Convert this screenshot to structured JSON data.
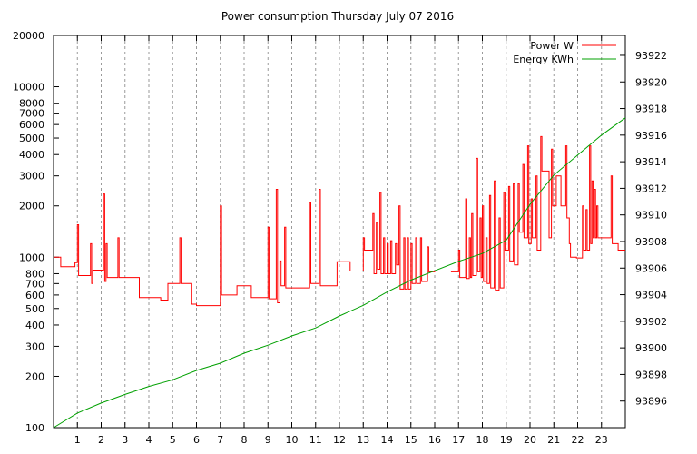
{
  "chart_data": {
    "type": "line",
    "title": "Power consumption Thursday July 07 2016",
    "x_ticks": [
      "1",
      "2",
      "3",
      "4",
      "5",
      "6",
      "7",
      "8",
      "9",
      "10",
      "11",
      "12",
      "13",
      "14",
      "15",
      "16",
      "17",
      "18",
      "19",
      "20",
      "21",
      "22",
      "23"
    ],
    "xlim": [
      0,
      24
    ],
    "y_left": {
      "scale": "log",
      "range": [
        100,
        20000
      ],
      "ticks": [
        100,
        200,
        300,
        400,
        500,
        600,
        700,
        800,
        1000,
        2000,
        3000,
        4000,
        5000,
        6000,
        7000,
        8000,
        10000,
        20000
      ]
    },
    "y_right": {
      "scale": "linear",
      "range": [
        93894.0,
        93923.5
      ],
      "ticks": [
        93896,
        93898,
        93900,
        93902,
        93904,
        93906,
        93908,
        93910,
        93912,
        93914,
        93916,
        93918,
        93920,
        93922
      ]
    },
    "grid": "vertical dashed at hours",
    "legend_position": "top-right",
    "series": [
      {
        "name": "Power W",
        "axis": "left",
        "color": "#ff0000",
        "points": [
          [
            0.0,
            1000
          ],
          [
            0.3,
            1000
          ],
          [
            0.3,
            880
          ],
          [
            0.9,
            880
          ],
          [
            0.9,
            930
          ],
          [
            1.0,
            930
          ],
          [
            1.0,
            1550
          ],
          [
            1.05,
            1550
          ],
          [
            1.05,
            780
          ],
          [
            1.55,
            780
          ],
          [
            1.55,
            1200
          ],
          [
            1.6,
            1200
          ],
          [
            1.6,
            700
          ],
          [
            1.65,
            700
          ],
          [
            1.65,
            840
          ],
          [
            2.1,
            840
          ],
          [
            2.1,
            2350
          ],
          [
            2.15,
            2350
          ],
          [
            2.15,
            720
          ],
          [
            2.2,
            720
          ],
          [
            2.2,
            1200
          ],
          [
            2.25,
            1200
          ],
          [
            2.25,
            760
          ],
          [
            2.7,
            760
          ],
          [
            2.7,
            1300
          ],
          [
            2.75,
            1300
          ],
          [
            2.75,
            760
          ],
          [
            3.6,
            760
          ],
          [
            3.6,
            580
          ],
          [
            4.5,
            580
          ],
          [
            4.5,
            560
          ],
          [
            4.8,
            560
          ],
          [
            4.8,
            700
          ],
          [
            5.3,
            700
          ],
          [
            5.3,
            1300
          ],
          [
            5.35,
            1300
          ],
          [
            5.35,
            700
          ],
          [
            5.8,
            700
          ],
          [
            5.8,
            530
          ],
          [
            6.0,
            530
          ],
          [
            6.0,
            520
          ],
          [
            7.0,
            520
          ],
          [
            7.0,
            2000
          ],
          [
            7.05,
            2000
          ],
          [
            7.05,
            600
          ],
          [
            7.7,
            600
          ],
          [
            7.7,
            680
          ],
          [
            8.3,
            680
          ],
          [
            8.3,
            580
          ],
          [
            9.0,
            580
          ],
          [
            9.0,
            1500
          ],
          [
            9.05,
            1500
          ],
          [
            9.05,
            570
          ],
          [
            9.35,
            570
          ],
          [
            9.35,
            2500
          ],
          [
            9.4,
            2500
          ],
          [
            9.4,
            540
          ],
          [
            9.5,
            540
          ],
          [
            9.5,
            950
          ],
          [
            9.55,
            950
          ],
          [
            9.55,
            680
          ],
          [
            9.7,
            680
          ],
          [
            9.7,
            1500
          ],
          [
            9.75,
            1500
          ],
          [
            9.75,
            660
          ],
          [
            10.75,
            660
          ],
          [
            10.75,
            2100
          ],
          [
            10.8,
            2100
          ],
          [
            10.8,
            700
          ],
          [
            11.15,
            700
          ],
          [
            11.15,
            2500
          ],
          [
            11.2,
            2500
          ],
          [
            11.2,
            680
          ],
          [
            11.9,
            680
          ],
          [
            11.9,
            940
          ],
          [
            12.45,
            940
          ],
          [
            12.45,
            830
          ],
          [
            13.0,
            830
          ],
          [
            13.0,
            1300
          ],
          [
            13.05,
            1300
          ],
          [
            13.05,
            1100
          ],
          [
            13.4,
            1100
          ],
          [
            13.4,
            1800
          ],
          [
            13.45,
            1800
          ],
          [
            13.45,
            800
          ],
          [
            13.55,
            800
          ],
          [
            13.55,
            1600
          ],
          [
            13.6,
            1600
          ],
          [
            13.6,
            850
          ],
          [
            13.7,
            850
          ],
          [
            13.7,
            2400
          ],
          [
            13.75,
            2400
          ],
          [
            13.75,
            800
          ],
          [
            13.85,
            800
          ],
          [
            13.85,
            1300
          ],
          [
            13.9,
            1300
          ],
          [
            13.9,
            800
          ],
          [
            14.0,
            800
          ],
          [
            14.0,
            1200
          ],
          [
            14.05,
            1200
          ],
          [
            14.05,
            800
          ],
          [
            14.15,
            800
          ],
          [
            14.15,
            1250
          ],
          [
            14.2,
            1250
          ],
          [
            14.2,
            800
          ],
          [
            14.35,
            800
          ],
          [
            14.35,
            1200
          ],
          [
            14.4,
            1200
          ],
          [
            14.4,
            900
          ],
          [
            14.5,
            900
          ],
          [
            14.5,
            2000
          ],
          [
            14.55,
            2000
          ],
          [
            14.55,
            650
          ],
          [
            14.7,
            650
          ],
          [
            14.7,
            1300
          ],
          [
            14.75,
            1300
          ],
          [
            14.75,
            650
          ],
          [
            14.85,
            650
          ],
          [
            14.85,
            1300
          ],
          [
            14.9,
            1300
          ],
          [
            14.9,
            650
          ],
          [
            15.0,
            650
          ],
          [
            15.0,
            1200
          ],
          [
            15.05,
            1200
          ],
          [
            15.05,
            700
          ],
          [
            15.2,
            700
          ],
          [
            15.2,
            1300
          ],
          [
            15.25,
            1300
          ],
          [
            15.25,
            700
          ],
          [
            15.4,
            700
          ],
          [
            15.4,
            1300
          ],
          [
            15.45,
            1300
          ],
          [
            15.45,
            720
          ],
          [
            15.7,
            720
          ],
          [
            15.7,
            1150
          ],
          [
            15.75,
            1150
          ],
          [
            15.75,
            820
          ],
          [
            16.0,
            820
          ],
          [
            16.0,
            830
          ],
          [
            16.7,
            830
          ],
          [
            16.7,
            820
          ],
          [
            17.0,
            820
          ],
          [
            17.0,
            1100
          ],
          [
            17.05,
            1100
          ],
          [
            17.05,
            760
          ],
          [
            17.3,
            760
          ],
          [
            17.3,
            2200
          ],
          [
            17.35,
            2200
          ],
          [
            17.35,
            750
          ],
          [
            17.45,
            750
          ],
          [
            17.45,
            1300
          ],
          [
            17.5,
            1300
          ],
          [
            17.5,
            760
          ],
          [
            17.55,
            760
          ],
          [
            17.55,
            1800
          ],
          [
            17.6,
            1800
          ],
          [
            17.6,
            780
          ],
          [
            17.75,
            780
          ],
          [
            17.75,
            3800
          ],
          [
            17.8,
            3800
          ],
          [
            17.8,
            820
          ],
          [
            17.9,
            820
          ],
          [
            17.9,
            1700
          ],
          [
            17.95,
            1700
          ],
          [
            17.95,
            760
          ],
          [
            18.0,
            760
          ],
          [
            18.0,
            2000
          ],
          [
            18.05,
            2000
          ],
          [
            18.05,
            720
          ],
          [
            18.15,
            720
          ],
          [
            18.15,
            1300
          ],
          [
            18.2,
            1300
          ],
          [
            18.2,
            700
          ],
          [
            18.3,
            700
          ],
          [
            18.3,
            2300
          ],
          [
            18.35,
            2300
          ],
          [
            18.35,
            660
          ],
          [
            18.5,
            660
          ],
          [
            18.5,
            2800
          ],
          [
            18.55,
            2800
          ],
          [
            18.55,
            640
          ],
          [
            18.7,
            640
          ],
          [
            18.7,
            1700
          ],
          [
            18.75,
            1700
          ],
          [
            18.75,
            660
          ],
          [
            18.9,
            660
          ],
          [
            18.9,
            2400
          ],
          [
            18.95,
            2400
          ],
          [
            18.95,
            1100
          ],
          [
            19.1,
            1100
          ],
          [
            19.1,
            2600
          ],
          [
            19.15,
            2600
          ],
          [
            19.15,
            950
          ],
          [
            19.3,
            950
          ],
          [
            19.3,
            2700
          ],
          [
            19.35,
            2700
          ],
          [
            19.35,
            900
          ],
          [
            19.5,
            900
          ],
          [
            19.5,
            2700
          ],
          [
            19.55,
            2700
          ],
          [
            19.55,
            1400
          ],
          [
            19.7,
            1400
          ],
          [
            19.7,
            3500
          ],
          [
            19.75,
            3500
          ],
          [
            19.75,
            1300
          ],
          [
            19.9,
            1300
          ],
          [
            19.9,
            4500
          ],
          [
            19.95,
            4500
          ],
          [
            19.95,
            1200
          ],
          [
            20.05,
            1200
          ],
          [
            20.05,
            2200
          ],
          [
            20.1,
            2200
          ],
          [
            20.1,
            1300
          ],
          [
            20.25,
            1300
          ],
          [
            20.25,
            3000
          ],
          [
            20.3,
            3000
          ],
          [
            20.3,
            1100
          ],
          [
            20.45,
            1100
          ],
          [
            20.45,
            5100
          ],
          [
            20.5,
            5100
          ],
          [
            20.5,
            3200
          ],
          [
            20.8,
            3200
          ],
          [
            20.8,
            1300
          ],
          [
            20.9,
            1300
          ],
          [
            20.9,
            4300
          ],
          [
            20.95,
            4300
          ],
          [
            20.95,
            2000
          ],
          [
            21.1,
            2000
          ],
          [
            21.1,
            3000
          ],
          [
            21.3,
            3000
          ],
          [
            21.3,
            2000
          ],
          [
            21.5,
            2000
          ],
          [
            21.5,
            4500
          ],
          [
            21.55,
            4500
          ],
          [
            21.55,
            1700
          ],
          [
            21.65,
            1700
          ],
          [
            21.65,
            1200
          ],
          [
            21.7,
            1200
          ],
          [
            21.7,
            1000
          ],
          [
            21.95,
            1000
          ],
          [
            21.95,
            990
          ],
          [
            22.2,
            990
          ],
          [
            22.2,
            2000
          ],
          [
            22.25,
            2000
          ],
          [
            22.25,
            1100
          ],
          [
            22.35,
            1100
          ],
          [
            22.35,
            1900
          ],
          [
            22.4,
            1900
          ],
          [
            22.4,
            1100
          ],
          [
            22.5,
            1100
          ],
          [
            22.5,
            4500
          ],
          [
            22.55,
            4500
          ],
          [
            22.55,
            1200
          ],
          [
            22.6,
            1200
          ],
          [
            22.6,
            2800
          ],
          [
            22.65,
            2800
          ],
          [
            22.65,
            1300
          ],
          [
            22.7,
            1300
          ],
          [
            22.7,
            2500
          ],
          [
            22.75,
            2500
          ],
          [
            22.75,
            1300
          ],
          [
            22.8,
            1300
          ],
          [
            22.8,
            2000
          ],
          [
            22.85,
            2000
          ],
          [
            22.85,
            1300
          ],
          [
            23.4,
            1300
          ],
          [
            23.4,
            3000
          ],
          [
            23.45,
            3000
          ],
          [
            23.45,
            1200
          ],
          [
            23.7,
            1200
          ],
          [
            23.7,
            1100
          ],
          [
            24.0,
            1100
          ]
        ]
      },
      {
        "name": "Energy KWh",
        "axis": "right",
        "color": "#00a000",
        "points": [
          [
            0,
            93894.0
          ],
          [
            1,
            93895.1
          ],
          [
            2,
            93895.85
          ],
          [
            3,
            93896.5
          ],
          [
            4,
            93897.1
          ],
          [
            5,
            93897.6
          ],
          [
            6,
            93898.3
          ],
          [
            7,
            93898.85
          ],
          [
            8,
            93899.6
          ],
          [
            9,
            93900.2
          ],
          [
            10,
            93900.9
          ],
          [
            11,
            93901.5
          ],
          [
            12,
            93902.4
          ],
          [
            13,
            93903.2
          ],
          [
            14,
            93904.2
          ],
          [
            15,
            93905.1
          ],
          [
            16,
            93905.8
          ],
          [
            17,
            93906.5
          ],
          [
            18,
            93907.1
          ],
          [
            19,
            93908.1
          ],
          [
            20,
            93910.8
          ],
          [
            21,
            93913.0
          ],
          [
            22,
            93914.5
          ],
          [
            23,
            93916.0
          ],
          [
            24,
            93917.3
          ]
        ]
      }
    ]
  }
}
